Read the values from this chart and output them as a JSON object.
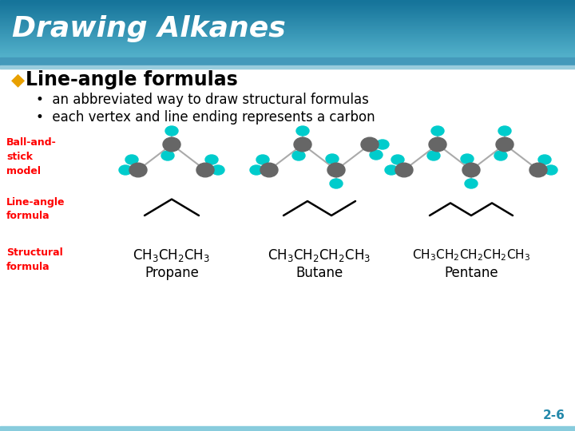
{
  "title": "Drawing Alkanes",
  "background_color": "#ffffff",
  "bullet_color": "#e8a000",
  "bullet_symbol": "◆",
  "main_bullet": "Line-angle formulas",
  "main_bullet_color": "#000000",
  "sub_bullets": [
    "an abbreviated way to draw structural formulas",
    "each vertex and line ending represents a carbon"
  ],
  "label_color": "#ff0000",
  "ball_and_stick_label": "Ball-and-\nstick\nmodel",
  "line_angle_label": "Line-angle\nformula",
  "structural_label": "Structural\nformula",
  "propane_name": "Propane",
  "butane_name": "Butane",
  "pentane_name": "Pentane",
  "page_number": "2-6",
  "carbon_color": "#666666",
  "hydrogen_color": "#00cccc",
  "bond_color": "#aaaaaa",
  "header_top_color": "#3399bb",
  "header_bot_color": "#66bbdd",
  "stripe_color": "#5599cc",
  "bottom_stripe_color": "#88ccdd"
}
